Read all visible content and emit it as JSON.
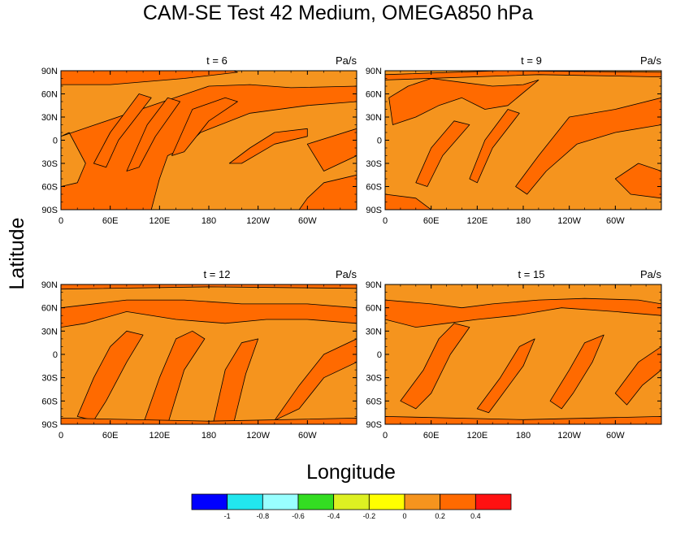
{
  "figure": {
    "title": "CAM-SE Test 42 Medium, OMEGA850 hPa",
    "xlabel": "Longitude",
    "ylabel": "Latitude"
  },
  "chart_data": [
    {
      "type": "heatmap",
      "panel_title": "t = 6",
      "units_label": "Pa/s",
      "x_ticks": [
        "0",
        "60E",
        "120E",
        "180",
        "120W",
        "60W"
      ],
      "y_ticks": [
        "90N",
        "60N",
        "30N",
        "0",
        "30S",
        "60S",
        "90S"
      ],
      "xlim": [
        0,
        360
      ],
      "ylim": [
        -90,
        90
      ],
      "dominant_levels": [
        0,
        0.2
      ]
    },
    {
      "type": "heatmap",
      "panel_title": "t = 9",
      "units_label": "Pa/s",
      "x_ticks": [
        "0",
        "60E",
        "120E",
        "180",
        "120W",
        "60W"
      ],
      "y_ticks": [
        "90N",
        "60N",
        "30N",
        "0",
        "30S",
        "60S",
        "90S"
      ],
      "xlim": [
        0,
        360
      ],
      "ylim": [
        -90,
        90
      ],
      "dominant_levels": [
        0,
        0.2
      ]
    },
    {
      "type": "heatmap",
      "panel_title": "t = 12",
      "units_label": "Pa/s",
      "x_ticks": [
        "0",
        "60E",
        "120E",
        "180",
        "120W",
        "60W"
      ],
      "y_ticks": [
        "90N",
        "60N",
        "30N",
        "0",
        "30S",
        "60S",
        "90S"
      ],
      "xlim": [
        0,
        360
      ],
      "ylim": [
        -90,
        90
      ],
      "dominant_levels": [
        0,
        0.2
      ]
    },
    {
      "type": "heatmap",
      "panel_title": "t = 15",
      "units_label": "Pa/s",
      "x_ticks": [
        "0",
        "60E",
        "120E",
        "180",
        "120W",
        "60W"
      ],
      "y_ticks": [
        "90N",
        "60N",
        "30N",
        "0",
        "30S",
        "60S",
        "90S"
      ],
      "xlim": [
        0,
        360
      ],
      "ylim": [
        -90,
        90
      ],
      "dominant_levels": [
        0,
        0.2
      ]
    }
  ],
  "colorbar": {
    "labels": [
      "-1",
      "-0.8",
      "-0.6",
      "-0.4",
      "-0.2",
      "0",
      "0.2",
      "0.4"
    ],
    "colors": [
      "#0000ff",
      "#22e6ee",
      "#99ffff",
      "#33dd22",
      "#ddf022",
      "#ffff00",
      "#f5941e",
      "#ff6a00",
      "#ff1111"
    ]
  }
}
